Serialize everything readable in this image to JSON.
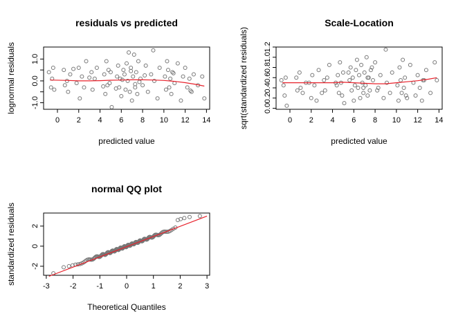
{
  "chart_data": [
    {
      "type": "scatter",
      "title": "residuals vs predicted",
      "xlabel": "predicted value",
      "ylabel": "lognormal residuals",
      "xlim": [
        -1.3,
        14.3
      ],
      "ylim": [
        -1.3,
        1.55
      ],
      "xticks": [
        0,
        2,
        4,
        6,
        8,
        10,
        12,
        14
      ],
      "yticks": [
        -1.0,
        -0.5,
        0.0,
        0.5,
        1.0
      ],
      "ytick_labels": [
        "-1.0",
        "",
        "0.0",
        "",
        "1.0"
      ],
      "grid": false,
      "series": [
        {
          "kind": "points",
          "x": [
            -0.8,
            -0.6,
            -0.5,
            -0.4,
            -0.3,
            0.6,
            0.7,
            0.9,
            1.0,
            1.2,
            1.8,
            2.0,
            2.1,
            2.3,
            2.5,
            2.7,
            3.2,
            3.3,
            3.5,
            3.7,
            4.4,
            4.5,
            4.6,
            4.7,
            4.8,
            4.9,
            5.0,
            5.1,
            5.6,
            5.7,
            5.8,
            5.9,
            6.0,
            6.2,
            6.3,
            6.4,
            6.5,
            6.6,
            6.7,
            6.8,
            6.9,
            7.0,
            7.1,
            7.2,
            7.3,
            7.4,
            7.5,
            7.6,
            7.8,
            8.0,
            8.3,
            8.5,
            8.8,
            9.0,
            9.1,
            9.4,
            9.6,
            10.1,
            10.2,
            10.3,
            10.4,
            10.5,
            10.6,
            10.7,
            10.8,
            11.0,
            11.3,
            11.6,
            11.8,
            12.0,
            12.2,
            12.4,
            12.6,
            12.8,
            13.2,
            13.6,
            13.8,
            6.1,
            7.3,
            8.2,
            4.3,
            10.9,
            5.5,
            6.9,
            7.7,
            3.0,
            12.5,
            1.5
          ],
          "y": [
            0.4,
            -0.3,
            0.1,
            0.6,
            -0.4,
            0.5,
            -0.2,
            0.0,
            -0.5,
            0.3,
            -0.1,
            0.6,
            -0.8,
            0.2,
            -0.3,
            0.9,
            0.4,
            -0.4,
            0.1,
            0.6,
            0.3,
            -0.6,
            0.9,
            -0.2,
            0.5,
            -0.1,
            0.4,
            -1.2,
            0.2,
            0.7,
            -0.3,
            0.1,
            -0.7,
            0.5,
            0.3,
            -0.4,
            0.8,
            0.0,
            1.3,
            -0.5,
            0.6,
            -0.9,
            0.2,
            1.2,
            -0.3,
            0.4,
            -0.6,
            0.9,
            0.1,
            -0.2,
            0.7,
            -0.5,
            0.3,
            1.4,
            0.0,
            -0.8,
            0.6,
            0.2,
            -0.4,
            0.9,
            0.5,
            -0.3,
            0.1,
            -0.6,
            0.4,
            -0.1,
            0.8,
            -0.9,
            0.2,
            0.6,
            -0.3,
            0.1,
            -0.5,
            0.3,
            -0.2,
            0.2,
            -0.8,
            0.05,
            -0.15,
            0.25,
            -0.25,
            0.35,
            -0.35,
            0.45,
            -0.05,
            0.15,
            -0.45,
            0.55
          ]
        },
        {
          "kind": "smooth",
          "x": [
            -0.7,
            1,
            2,
            3,
            4,
            5,
            6,
            7,
            8,
            9,
            10,
            11,
            12,
            13,
            13.8
          ],
          "y": [
            0.04,
            0.02,
            0.0,
            0.0,
            0.01,
            0.03,
            0.04,
            0.05,
            0.05,
            0.04,
            0.02,
            -0.02,
            -0.08,
            -0.16,
            -0.24
          ]
        }
      ]
    },
    {
      "type": "scatter",
      "title": "Scale-Location",
      "xlabel": "predicted value",
      "ylabel": "sqrt(standardized residuals)",
      "xlim": [
        -1.3,
        14.3
      ],
      "ylim": [
        -0.02,
        1.2
      ],
      "xticks": [
        0,
        2,
        4,
        6,
        8,
        10,
        12,
        14
      ],
      "yticks": [
        0.0,
        0.2,
        0.4,
        0.6,
        0.8,
        1.0,
        1.2
      ],
      "ytick_labels": [
        "0.0",
        "0.2",
        "0.4",
        "0.6",
        "0.8",
        "1.0",
        "1.2"
      ],
      "grid": false,
      "series": [
        {
          "kind": "points",
          "x": [
            -0.8,
            -0.6,
            -0.5,
            -0.4,
            -0.3,
            0.6,
            0.7,
            0.9,
            1.0,
            1.2,
            1.8,
            2.0,
            2.1,
            2.3,
            2.5,
            2.7,
            3.2,
            3.3,
            3.5,
            3.7,
            4.4,
            4.5,
            4.6,
            4.7,
            4.8,
            4.9,
            5.0,
            5.1,
            5.6,
            5.7,
            5.8,
            5.9,
            6.0,
            6.2,
            6.3,
            6.4,
            6.5,
            6.6,
            6.7,
            6.8,
            6.9,
            7.0,
            7.1,
            7.2,
            7.3,
            7.4,
            7.5,
            7.6,
            7.8,
            8.0,
            8.3,
            8.5,
            8.8,
            9.0,
            9.1,
            9.4,
            9.6,
            10.1,
            10.2,
            10.3,
            10.4,
            10.5,
            10.6,
            10.7,
            10.8,
            11.0,
            11.3,
            11.6,
            11.8,
            12.0,
            12.2,
            12.4,
            12.6,
            12.8,
            13.2,
            13.6,
            13.8,
            6.1,
            7.3,
            8.2,
            4.3,
            10.9,
            5.5,
            6.9,
            7.7,
            3.0,
            12.5,
            1.5
          ],
          "y": [
            0.55,
            0.45,
            0.25,
            0.6,
            0.05,
            0.6,
            0.35,
            0.7,
            0.4,
            0.3,
            0.5,
            0.2,
            0.65,
            0.45,
            0.15,
            0.75,
            0.55,
            0.35,
            0.6,
            0.85,
            0.45,
            0.65,
            0.3,
            0.9,
            0.5,
            0.25,
            0.7,
            0.1,
            0.55,
            0.8,
            0.35,
            0.6,
            0.15,
            0.75,
            0.95,
            0.4,
            0.65,
            0.2,
            0.85,
            0.5,
            0.3,
            0.7,
            0.45,
            1.0,
            0.25,
            0.6,
            0.35,
            0.75,
            0.55,
            0.9,
            0.4,
            0.65,
            0.2,
            1.15,
            0.5,
            0.3,
            0.7,
            0.45,
            0.15,
            0.8,
            0.55,
            0.3,
            0.95,
            0.4,
            0.6,
            0.2,
            0.85,
            0.5,
            0.25,
            0.65,
            0.4,
            0.15,
            0.55,
            0.75,
            0.3,
            0.9,
            0.55,
            0.45,
            0.6,
            0.35,
            0.5,
            0.25,
            0.7,
            0.4,
            0.8,
            0.3,
            0.55,
            0.5
          ]
        },
        {
          "kind": "smooth",
          "x": [
            -0.7,
            1,
            2,
            3,
            4,
            5,
            6,
            7,
            8,
            9,
            10,
            11,
            12,
            13,
            13.8
          ],
          "y": [
            0.5,
            0.5,
            0.5,
            0.5,
            0.5,
            0.51,
            0.5,
            0.49,
            0.48,
            0.48,
            0.5,
            0.52,
            0.54,
            0.57,
            0.6
          ]
        }
      ]
    },
    {
      "type": "scatter",
      "title": "normal QQ plot",
      "xlabel": "Theoretical Quantiles",
      "ylabel": "standardized residuals",
      "xlim": [
        -3.1,
        3.1
      ],
      "ylim": [
        -2.9,
        3.3
      ],
      "xticks": [
        -3,
        -2,
        -1,
        0,
        1,
        2,
        3
      ],
      "yticks": [
        -2,
        0,
        2
      ],
      "ytick_labels": [
        "-2",
        "0",
        "2"
      ],
      "grid": false,
      "series": [
        {
          "kind": "qq-points",
          "n": 160,
          "tail_low": [
            -2.7,
            -2.1,
            -2.0
          ],
          "tail_high": [
            2.6,
            2.7,
            2.8,
            2.9,
            3.0
          ]
        },
        {
          "kind": "reference-line",
          "x": [
            -2.9,
            3.0
          ],
          "y": [
            -3.0,
            3.0
          ]
        }
      ]
    }
  ],
  "colors": {
    "points": "#777777",
    "smooth": "#e8202a",
    "axis": "#000000"
  }
}
